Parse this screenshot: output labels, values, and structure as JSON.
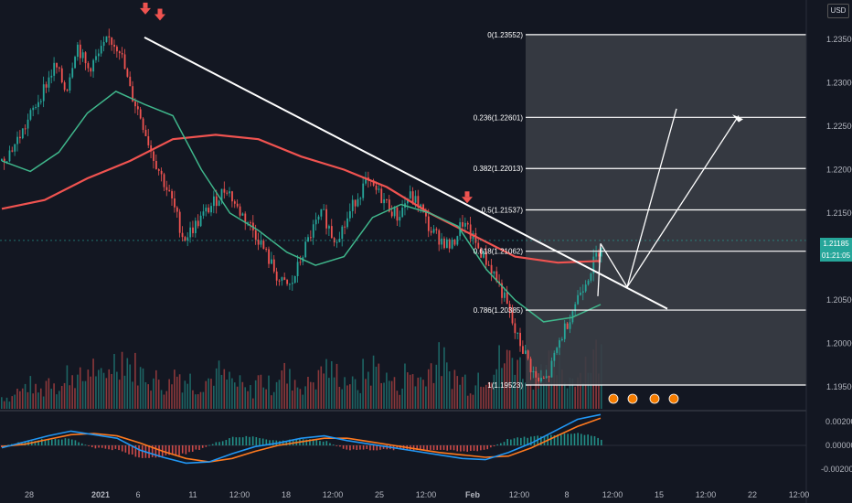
{
  "currency": "USD",
  "price_label": {
    "price": "1.21185",
    "countdown": "01:21:05"
  },
  "colors": {
    "background": "#131722",
    "up": "#26a69a",
    "down": "#ef5350",
    "ma_fast": "#3fb68b",
    "ma_slow": "#f05350",
    "trendline": "#ffffff",
    "fib_zone": "#3a3d45",
    "macd": "#2196f3",
    "signal": "#ff7a1f"
  },
  "chart_data": [
    {
      "type": "candlestick",
      "title": "",
      "ylim": [
        1.1925,
        1.2395
      ],
      "yticks": [
        "1.23500",
        "1.23000",
        "1.22500",
        "1.22000",
        "1.21500",
        "1.21000",
        "1.20500",
        "1.20000",
        "1.19500"
      ],
      "xticks": [
        "28",
        "2021",
        "6",
        "11",
        "12:00",
        "18",
        "12:00",
        "25",
        "12:00",
        "Feb",
        "12:00",
        "8",
        "12:00",
        "15",
        "12:00",
        "22",
        "12:00"
      ],
      "price_path": [
        1.221,
        1.2225,
        1.2245,
        1.227,
        1.2295,
        1.232,
        1.229,
        1.2345,
        1.2315,
        1.233,
        1.235,
        1.234,
        1.229,
        1.226,
        1.222,
        1.219,
        1.216,
        1.212,
        1.2135,
        1.215,
        1.2165,
        1.218,
        1.2155,
        1.214,
        1.212,
        1.2095,
        1.207,
        1.2065,
        1.21,
        1.213,
        1.215,
        1.212,
        1.2135,
        1.2165,
        1.2185,
        1.2175,
        1.216,
        1.2145,
        1.217,
        1.216,
        1.213,
        1.212,
        1.211,
        1.214,
        1.212,
        1.21,
        1.208,
        1.205,
        1.201,
        1.1985,
        1.1955,
        1.196,
        1.2,
        1.203,
        1.206,
        1.2085,
        1.2115
      ],
      "fast_ma": [
        1.221,
        1.2198,
        1.222,
        1.2265,
        1.229,
        1.2275,
        1.2262,
        1.22,
        1.215,
        1.213,
        1.2105,
        1.209,
        1.21,
        1.2145,
        1.216,
        1.215,
        1.2135,
        1.2085,
        1.205,
        1.2025,
        1.203,
        1.2045
      ],
      "slow_ma": [
        1.2155,
        1.2165,
        1.219,
        1.221,
        1.2235,
        1.224,
        1.2235,
        1.2215,
        1.22,
        1.218,
        1.215,
        1.2125,
        1.21,
        1.2093,
        1.2095
      ],
      "annotations": {
        "fib_levels": [
          {
            "ratio": "0",
            "price": 1.23552
          },
          {
            "ratio": "0.236",
            "price": 1.22601
          },
          {
            "ratio": "0.382",
            "price": 1.22013
          },
          {
            "ratio": "0.5",
            "price": 1.21537
          },
          {
            "ratio": "0.618",
            "price": 1.21062
          },
          {
            "ratio": "0.786",
            "price": 1.20385
          },
          {
            "ratio": "1",
            "price": 1.19523
          }
        ],
        "downtrend_line": [
          [
            7,
            1.2352
          ],
          [
            51,
            1.204
          ]
        ],
        "peak_markers": [
          1.2372,
          1.2365,
          1.2155
        ],
        "projected_path": [
          [
            57,
            1.2115
          ],
          [
            61,
            1.2065
          ],
          [
            66,
            1.227
          ]
        ]
      }
    },
    {
      "type": "bar",
      "title": "",
      "note": "volume histogram beneath price",
      "values": [
        2,
        3,
        4,
        3,
        5,
        4,
        6,
        5,
        7,
        5,
        8,
        9,
        7,
        6,
        5,
        4,
        6,
        5,
        4,
        5,
        6,
        5,
        4,
        3,
        5,
        4,
        6,
        5,
        4,
        5,
        7,
        6,
        5,
        4,
        6,
        7,
        5,
        4,
        6,
        5,
        7,
        8,
        6,
        5,
        4,
        6,
        7,
        8,
        9,
        7,
        6,
        8,
        7,
        5,
        6,
        8,
        9
      ]
    },
    {
      "type": "line",
      "title": "",
      "ylim": [
        -0.0027,
        0.0027
      ],
      "yticks": [
        "0.00200",
        "0.00000",
        "-0.00200"
      ],
      "series": [
        {
          "values": [
            -0.0002,
            0.0003,
            0.0008,
            0.0012,
            0.0009,
            0.0006,
            -0.0004,
            -0.001,
            -0.0015,
            -0.0014,
            -0.0007,
            -0.0001,
            0.0002,
            0.0006,
            0.0008,
            0.0004,
            0.0001,
            -0.0002,
            -0.0005,
            -0.0008,
            -0.0011,
            -0.0012,
            -0.0006,
            0.0002,
            0.0012,
            0.0022,
            0.0026
          ]
        },
        {
          "values": [
            -0.0001,
            0.0001,
            0.0005,
            0.0009,
            0.001,
            0.0008,
            0.0002,
            -0.0005,
            -0.0011,
            -0.0014,
            -0.0011,
            -0.0005,
            0.0,
            0.0003,
            0.0006,
            0.0006,
            0.0003,
            0.0,
            -0.0003,
            -0.0006,
            -0.0008,
            -0.001,
            -0.0009,
            -0.0002,
            0.0007,
            0.0016,
            0.0023
          ]
        }
      ]
    }
  ]
}
